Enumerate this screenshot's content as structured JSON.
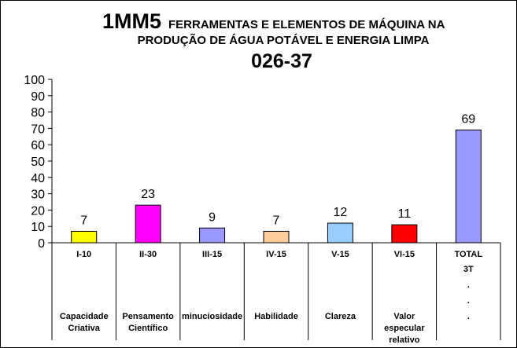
{
  "chart_data": {
    "type": "bar",
    "title_code": "1MM5",
    "title": "FERRAMENTAS E ELEMENTOS DE MÁQUINA NA",
    "title_line2": "PRODUÇÃO DE ÁGUA POTÁVEL  E ENERGIA LIMPA",
    "subtitle": "026-37",
    "categories": [
      "I-10",
      "II-30",
      "III-15",
      "IV-15",
      "V-15",
      "VI-15",
      "TOTAL"
    ],
    "descriptions": [
      "Capacidade Criativa",
      "Pensamento Científico",
      "minuciosidade",
      "Habilidade",
      "Clareza",
      "Valor especular relativo",
      "."
    ],
    "total_notes": [
      "3T",
      ".",
      "."
    ],
    "values": [
      7,
      23,
      9,
      7,
      12,
      11,
      69
    ],
    "colors": [
      "#ffff00",
      "#ff00ff",
      "#9999ff",
      "#ffcc99",
      "#99ccff",
      "#ff0000",
      "#9999ff"
    ],
    "ylim": [
      0,
      100
    ],
    "yticks": [
      0,
      10,
      20,
      30,
      40,
      50,
      60,
      70,
      80,
      90,
      100
    ],
    "grid": false
  }
}
